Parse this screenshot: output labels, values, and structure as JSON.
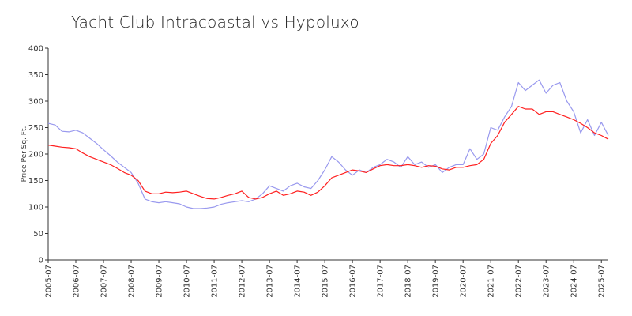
{
  "chart_data": {
    "type": "line",
    "title": "Yacht Club Intracoastal vs Hypoluxo",
    "xlabel": "",
    "ylabel": "Price Per Sq. Ft.",
    "ylim": [
      0,
      400
    ],
    "yticks": [
      0,
      50,
      100,
      150,
      200,
      250,
      300,
      350,
      400
    ],
    "xlim": [
      "2005-07",
      "2025-10"
    ],
    "xticks": [
      "2005-07",
      "2006-07",
      "2007-07",
      "2008-07",
      "2009-07",
      "2010-07",
      "2011-07",
      "2012-07",
      "2013-07",
      "2014-07",
      "2015-07",
      "2016-07",
      "2017-07",
      "2018-07",
      "2019-07",
      "2020-07",
      "2021-07",
      "2022-07",
      "2023-07",
      "2024-07",
      "2025-07"
    ],
    "grid": false,
    "legend": "none",
    "series": [
      {
        "color": "#9999ee",
        "x": [
          "2005-07",
          "2005-10",
          "2006-01",
          "2006-04",
          "2006-07",
          "2006-10",
          "2007-01",
          "2007-04",
          "2007-07",
          "2007-10",
          "2008-01",
          "2008-04",
          "2008-07",
          "2008-10",
          "2009-01",
          "2009-04",
          "2009-07",
          "2009-10",
          "2010-01",
          "2010-04",
          "2010-07",
          "2010-10",
          "2011-01",
          "2011-04",
          "2011-07",
          "2011-10",
          "2012-01",
          "2012-04",
          "2012-07",
          "2012-10",
          "2013-01",
          "2013-04",
          "2013-07",
          "2013-10",
          "2014-01",
          "2014-04",
          "2014-07",
          "2014-10",
          "2015-01",
          "2015-04",
          "2015-07",
          "2015-10",
          "2016-01",
          "2016-04",
          "2016-07",
          "2016-10",
          "2017-01",
          "2017-04",
          "2017-07",
          "2017-10",
          "2018-01",
          "2018-04",
          "2018-07",
          "2018-10",
          "2019-01",
          "2019-04",
          "2019-07",
          "2019-10",
          "2020-01",
          "2020-04",
          "2020-07",
          "2020-10",
          "2021-01",
          "2021-04",
          "2021-07",
          "2021-10",
          "2022-01",
          "2022-04",
          "2022-07",
          "2022-10",
          "2023-01",
          "2023-04",
          "2023-07",
          "2023-10",
          "2024-01",
          "2024-04",
          "2024-07",
          "2024-10",
          "2025-01",
          "2025-04",
          "2025-07",
          "2025-10"
        ],
        "values": [
          258,
          255,
          243,
          242,
          245,
          240,
          230,
          220,
          208,
          197,
          185,
          175,
          165,
          145,
          115,
          110,
          108,
          110,
          108,
          106,
          100,
          97,
          97,
          98,
          100,
          105,
          108,
          110,
          112,
          110,
          115,
          125,
          140,
          135,
          130,
          140,
          145,
          138,
          135,
          150,
          170,
          195,
          185,
          170,
          160,
          170,
          165,
          175,
          180,
          190,
          185,
          175,
          195,
          180,
          185,
          175,
          180,
          165,
          175,
          180,
          180,
          210,
          190,
          200,
          250,
          245,
          270,
          290,
          335,
          320,
          330,
          340,
          315,
          330,
          335,
          300,
          280,
          240,
          265,
          235,
          260,
          235
        ]
      },
      {
        "color": "#ff2020",
        "x": [
          "2005-07",
          "2005-10",
          "2006-01",
          "2006-04",
          "2006-07",
          "2006-10",
          "2007-01",
          "2007-04",
          "2007-07",
          "2007-10",
          "2008-01",
          "2008-04",
          "2008-07",
          "2008-10",
          "2009-01",
          "2009-04",
          "2009-07",
          "2009-10",
          "2010-01",
          "2010-04",
          "2010-07",
          "2010-10",
          "2011-01",
          "2011-04",
          "2011-07",
          "2011-10",
          "2012-01",
          "2012-04",
          "2012-07",
          "2012-10",
          "2013-01",
          "2013-04",
          "2013-07",
          "2013-10",
          "2014-01",
          "2014-04",
          "2014-07",
          "2014-10",
          "2015-01",
          "2015-04",
          "2015-07",
          "2015-10",
          "2016-01",
          "2016-04",
          "2016-07",
          "2016-10",
          "2017-01",
          "2017-04",
          "2017-07",
          "2017-10",
          "2018-01",
          "2018-04",
          "2018-07",
          "2018-10",
          "2019-01",
          "2019-04",
          "2019-07",
          "2019-10",
          "2020-01",
          "2020-04",
          "2020-07",
          "2020-10",
          "2021-01",
          "2021-04",
          "2021-07",
          "2021-10",
          "2022-01",
          "2022-04",
          "2022-07",
          "2022-10",
          "2023-01",
          "2023-04",
          "2023-07",
          "2023-10",
          "2024-01",
          "2024-04",
          "2024-07",
          "2024-10",
          "2025-01",
          "2025-04",
          "2025-07",
          "2025-10"
        ],
        "values": [
          217,
          215,
          213,
          212,
          210,
          202,
          195,
          190,
          185,
          180,
          173,
          165,
          160,
          150,
          130,
          125,
          125,
          128,
          127,
          128,
          130,
          125,
          120,
          116,
          115,
          118,
          122,
          125,
          130,
          118,
          115,
          118,
          125,
          130,
          122,
          125,
          130,
          128,
          122,
          128,
          140,
          155,
          160,
          165,
          170,
          168,
          165,
          172,
          178,
          180,
          178,
          178,
          180,
          178,
          175,
          178,
          177,
          172,
          170,
          175,
          175,
          178,
          180,
          190,
          220,
          235,
          260,
          275,
          290,
          285,
          285,
          275,
          280,
          280,
          275,
          270,
          265,
          258,
          250,
          240,
          235,
          228
        ]
      }
    ]
  }
}
